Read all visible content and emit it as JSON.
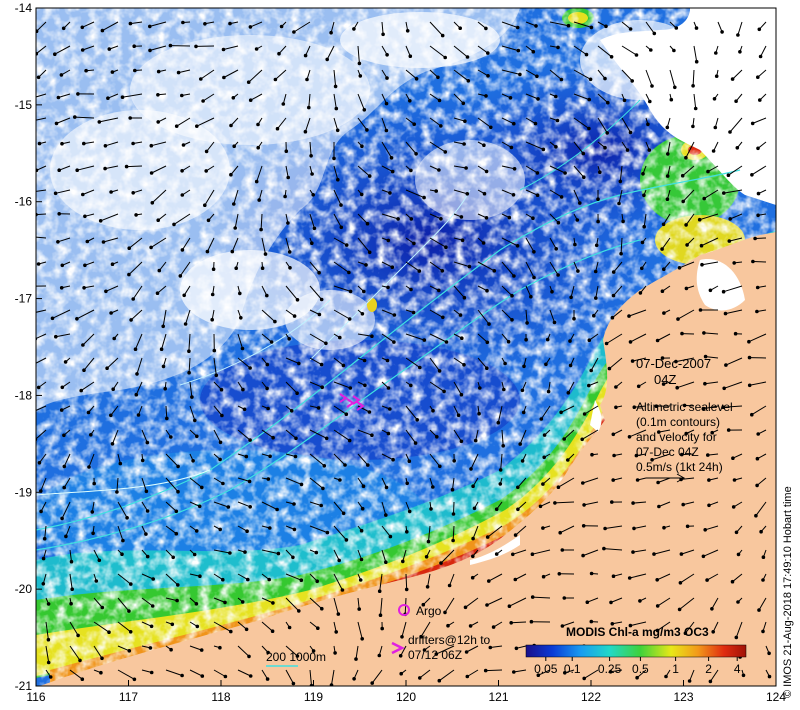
{
  "axes": {
    "x_ticks": [
      "116",
      "117",
      "118",
      "119",
      "120",
      "121",
      "122",
      "123",
      "124"
    ],
    "y_ticks": [
      "-14",
      "-15",
      "-16",
      "-17",
      "-18",
      "-19",
      "-20",
      "-21"
    ],
    "xlim": [
      116,
      124
    ],
    "ylim": [
      -21,
      -14
    ]
  },
  "date_block": {
    "date": "07-Dec-2007",
    "time": "04Z"
  },
  "info_block": {
    "line1": "Altimetric sealevel",
    "line2": "(0.1m contours)",
    "line3": "and velocity for",
    "line4": "07-Dec 04Z",
    "line5": "0.5m/s (1kt 24h)"
  },
  "legend": {
    "argo_label": "Argo",
    "drifter_line1": "drifters@12h to",
    "drifter_line2": "07/12 06Z",
    "isobath_label": "200  1000m"
  },
  "colorbar": {
    "title": "MODIS Chl-a mg/m3 OC3",
    "labels": [
      "0.05",
      "0.1",
      "0.25",
      "0.5",
      "1",
      "2",
      "4"
    ],
    "colors": [
      "#1a0f8a",
      "#0a3bd6",
      "#1a9cf0",
      "#22d8c8",
      "#3fd23a",
      "#e8e818",
      "#f29a1a",
      "#e02c10",
      "#a01208"
    ]
  },
  "credit": "© IMOS 21-Aug-2018 17:49:10 Hobart time",
  "colors": {
    "land": "#f8c79e",
    "magenta": "#e020e0",
    "isobath": "#40e0e0"
  }
}
